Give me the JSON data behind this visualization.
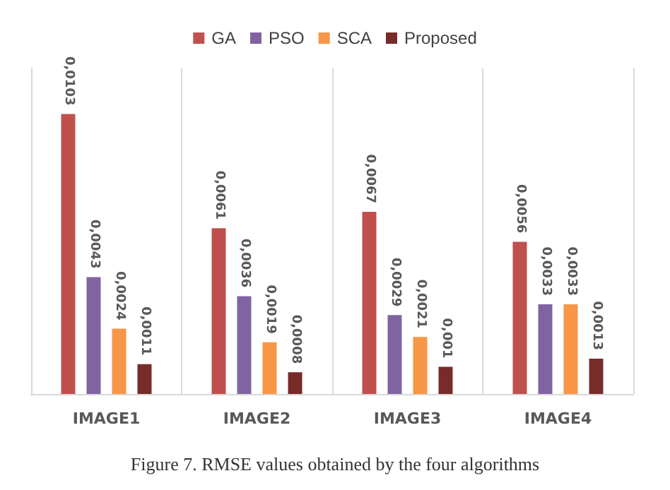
{
  "chart_data": {
    "type": "bar",
    "categories": [
      "IMAGE1",
      "IMAGE2",
      "IMAGE3",
      "IMAGE4"
    ],
    "series": [
      {
        "name": "GA",
        "color": "#c0504d",
        "values": [
          0.0103,
          0.0061,
          0.0067,
          0.0056
        ],
        "value_labels": [
          "0,0103",
          "0,0061",
          "0,0067",
          "0,0056"
        ]
      },
      {
        "name": "PSO",
        "color": "#8064a2",
        "values": [
          0.0043,
          0.0036,
          0.0029,
          0.0033
        ],
        "value_labels": [
          "0,0043",
          "0,0036",
          "0,0029",
          "0,0033"
        ]
      },
      {
        "name": "SCA",
        "color": "#f79646",
        "values": [
          0.0024,
          0.0019,
          0.0021,
          0.0033
        ],
        "value_labels": [
          "0,0024",
          "0,0019",
          "0,0021",
          "0,0033"
        ]
      },
      {
        "name": "Proposed",
        "color": "#772c2a",
        "values": [
          0.0011,
          0.0008,
          0.001,
          0.0013
        ],
        "value_labels": [
          "0,0011",
          "0,0008",
          "0,001",
          "0,0013"
        ]
      }
    ],
    "legend": "top",
    "grid": "x",
    "tick_labels": "x",
    "annotations": [
      "Figure 7. RMSE values obtained by the four algorithms"
    ]
  }
}
